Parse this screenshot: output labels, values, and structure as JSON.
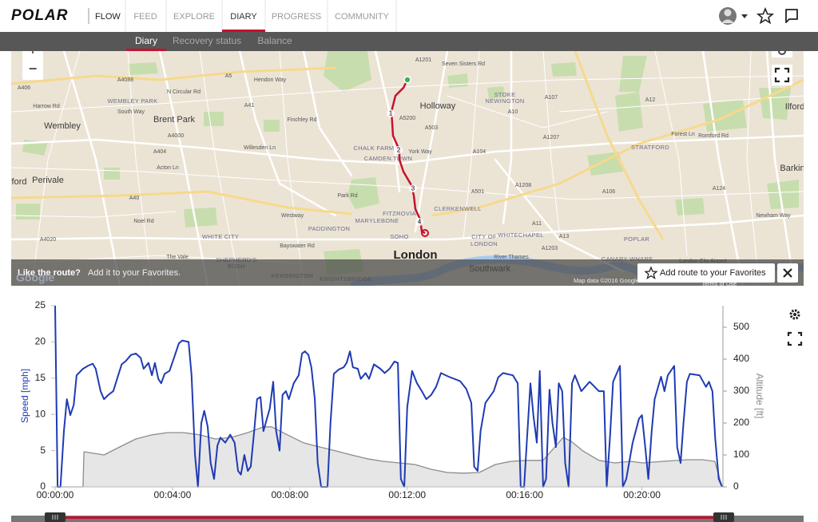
{
  "nav": {
    "logo": "POLAR",
    "product": "FLOW",
    "items": [
      "FEED",
      "EXPLORE",
      "DIARY",
      "PROGRESS",
      "COMMUNITY"
    ],
    "active": 2
  },
  "subnav": {
    "items": [
      "Diary",
      "Recovery status",
      "Balance"
    ],
    "active": 0
  },
  "map": {
    "zoom_in": "+",
    "zoom_out": "−",
    "places": [
      "Wembley",
      "Brent Park",
      "Holloway",
      "Perivale",
      "ford",
      "STRATFORD",
      "Barkin",
      "Ilford",
      "London",
      "Southwark",
      "WEMBLEY PARK",
      "CHALK FARM",
      "CAMDEN TOWN",
      "FITZROVIA",
      "MARYLEBONE",
      "SOHO",
      "PADDINGTON",
      "CLERKENWELL",
      "CITY OF",
      "LONDON",
      "WHITECHAPEL",
      "WHITE CITY",
      "KENSINGTON",
      "KNIGHTSBRIDGE",
      "SHEPHERD'S",
      "BUSH",
      "STOKE",
      "NEWINGTON",
      "POPLAR",
      "CANARY WHARF",
      "London City Airport",
      "River Thames",
      "A406",
      "Harrow Rd",
      "A4088",
      "South Way",
      "A404",
      "A40",
      "A4020",
      "Noel Rd",
      "The Vale",
      "A5",
      "Hendon Way",
      "A41",
      "Finchley Rd",
      "Willesden Ln",
      "Park Rd",
      "Westway",
      "Bayswater Rd",
      "A5200",
      "A503",
      "York Way",
      "A501",
      "A104",
      "A10",
      "A107",
      "A1207",
      "A1208",
      "A11",
      "A13",
      "A1203",
      "A12",
      "A106",
      "A124",
      "Romford Rd",
      "Forest Ln",
      "Newham Way",
      "A1201",
      "Seven Sisters Rd",
      "N Circular Rd",
      "Acton Ln",
      "A4000"
    ],
    "route_markers": [
      "1",
      "2",
      "3",
      "4"
    ],
    "banner": {
      "question": "Like the route?",
      "hint": "Add it to your Favorites.",
      "button": "Add route to your Favorites"
    },
    "logo": "Google",
    "attribution": "Map data ©2016 Google",
    "terms": "Terms of Use"
  },
  "chart_data": {
    "type": "line",
    "ylabel": "Speed [mph]",
    "y2label": "Altitude [ft]",
    "xlim": [
      0,
      1364
    ],
    "xticks": [
      {
        "value": 0,
        "label": "00:00:00"
      },
      {
        "value": 240,
        "label": "00:04:00"
      },
      {
        "value": 480,
        "label": "00:08:00"
      },
      {
        "value": 720,
        "label": "00:12:00"
      },
      {
        "value": 960,
        "label": "00:16:00"
      },
      {
        "value": 1200,
        "label": "00:20:00"
      }
    ],
    "ylim": [
      0,
      25
    ],
    "yticks": [
      0,
      5,
      10,
      15,
      20,
      25
    ],
    "y2lim": [
      0,
      567.5
    ],
    "y2ticks": [
      0,
      100,
      200,
      300,
      400,
      500
    ],
    "grid": false,
    "series": [
      {
        "color": "#8c8c8c",
        "fill": "#e6e6e6",
        "axis": "y2",
        "x": [
          0,
          57,
          59,
          100,
          132,
          165,
          198,
          230,
          263,
          296,
          328,
          361,
          394,
          426,
          443,
          475,
          508,
          541,
          573,
          606,
          638,
          671,
          704,
          736,
          769,
          802,
          834,
          867,
          900,
          932,
          965,
          998,
          1022,
          1039,
          1055,
          1079,
          1112,
          1145,
          1177,
          1202,
          1243,
          1292,
          1324,
          1349,
          1364
        ],
        "values": [
          0,
          0,
          110,
          100,
          125,
          150,
          163,
          170,
          170,
          163,
          150,
          155,
          170,
          188,
          188,
          163,
          138,
          125,
          113,
          100,
          88,
          80,
          75,
          70,
          55,
          45,
          43,
          45,
          70,
          80,
          83,
          83,
          125,
          155,
          143,
          113,
          83,
          75,
          80,
          75,
          80,
          85,
          85,
          80,
          0
        ]
      },
      {
        "color": "#1f3bb3",
        "axis": "y",
        "x": [
          0,
          5,
          11,
          18,
          24,
          31,
          38,
          44,
          57,
          67,
          77,
          83,
          93,
          100,
          109,
          119,
          129,
          136,
          145,
          155,
          165,
          175,
          181,
          191,
          198,
          204,
          211,
          217,
          224,
          234,
          243,
          253,
          260,
          273,
          279,
          286,
          292,
          299,
          305,
          312,
          318,
          325,
          332,
          338,
          348,
          358,
          367,
          374,
          380,
          387,
          394,
          400,
          407,
          413,
          420,
          426,
          433,
          439,
          446,
          452,
          459,
          465,
          472,
          478,
          488,
          498,
          505,
          511,
          518,
          524,
          531,
          537,
          544,
          557,
          563,
          570,
          580,
          590,
          596,
          603,
          609,
          619,
          625,
          635,
          642,
          652,
          665,
          674,
          684,
          694,
          701,
          707,
          714,
          720,
          730,
          740,
          750,
          759,
          769,
          779,
          789,
          805,
          828,
          841,
          851,
          857,
          864,
          870,
          880,
          897,
          906,
          916,
          936,
          946,
          952,
          959,
          965,
          972,
          978,
          985,
          991,
          998,
          1004,
          1011,
          1017,
          1024,
          1030,
          1037,
          1043,
          1050,
          1057,
          1063,
          1076,
          1093,
          1112,
          1122,
          1128,
          1135,
          1141,
          1155,
          1161,
          1168,
          1181,
          1194,
          1200,
          1207,
          1213,
          1220,
          1226,
          1239,
          1246,
          1253,
          1266,
          1272,
          1279,
          1285,
          1292,
          1298,
          1318,
          1331,
          1337,
          1344,
          1350,
          1357,
          1364
        ],
        "values": [
          25,
          0,
          0,
          7.7,
          12.1,
          9.9,
          11.3,
          15.4,
          16.3,
          16.7,
          17,
          16.3,
          13.2,
          12.1,
          12.7,
          13.2,
          15.4,
          16.9,
          17.4,
          18.2,
          18.4,
          17.8,
          16.3,
          17.1,
          15.4,
          17.1,
          14.9,
          14.3,
          15.6,
          16,
          17.8,
          19.8,
          20.2,
          20,
          15.4,
          4.4,
          0,
          8.8,
          10.5,
          8.3,
          3.3,
          1.1,
          5.7,
          6.8,
          6.1,
          7.2,
          6.1,
          2.2,
          1.7,
          4.4,
          2.2,
          2.8,
          7.7,
          12.1,
          12.4,
          7.7,
          9.4,
          10.8,
          14.5,
          7.7,
          5,
          12.7,
          13.2,
          12.1,
          14.3,
          15.4,
          18.4,
          18.7,
          18.2,
          16.5,
          12.1,
          3.3,
          0,
          0,
          8.8,
          15.6,
          16.2,
          16.5,
          17.1,
          18.7,
          16.5,
          16.3,
          14.9,
          15.7,
          14.9,
          16.9,
          16.3,
          15.7,
          16.3,
          17.3,
          17.1,
          1.1,
          0,
          11,
          16,
          14.3,
          13.2,
          12.1,
          12.7,
          13.8,
          15.7,
          15.2,
          14.6,
          13.5,
          11.6,
          2.8,
          2.2,
          7.7,
          11.6,
          13.2,
          15.1,
          15.7,
          15.4,
          14.3,
          0,
          0,
          6.6,
          14.3,
          9.9,
          6.1,
          16,
          0,
          1.1,
          13.4,
          8.8,
          5.5,
          14.3,
          13.2,
          3.3,
          0,
          14.3,
          15.4,
          13.2,
          14.5,
          13.2,
          13.2,
          0,
          7.2,
          14.5,
          16.7,
          0,
          1.1,
          6.1,
          9.4,
          9.9,
          5.3,
          1.1,
          7.7,
          12.1,
          15.2,
          13.2,
          15.4,
          16.7,
          5.5,
          3.3,
          8.8,
          14.5,
          15.6,
          15.4,
          13.8,
          14.5,
          13.2,
          6.6,
          1.1,
          0
        ]
      }
    ]
  }
}
